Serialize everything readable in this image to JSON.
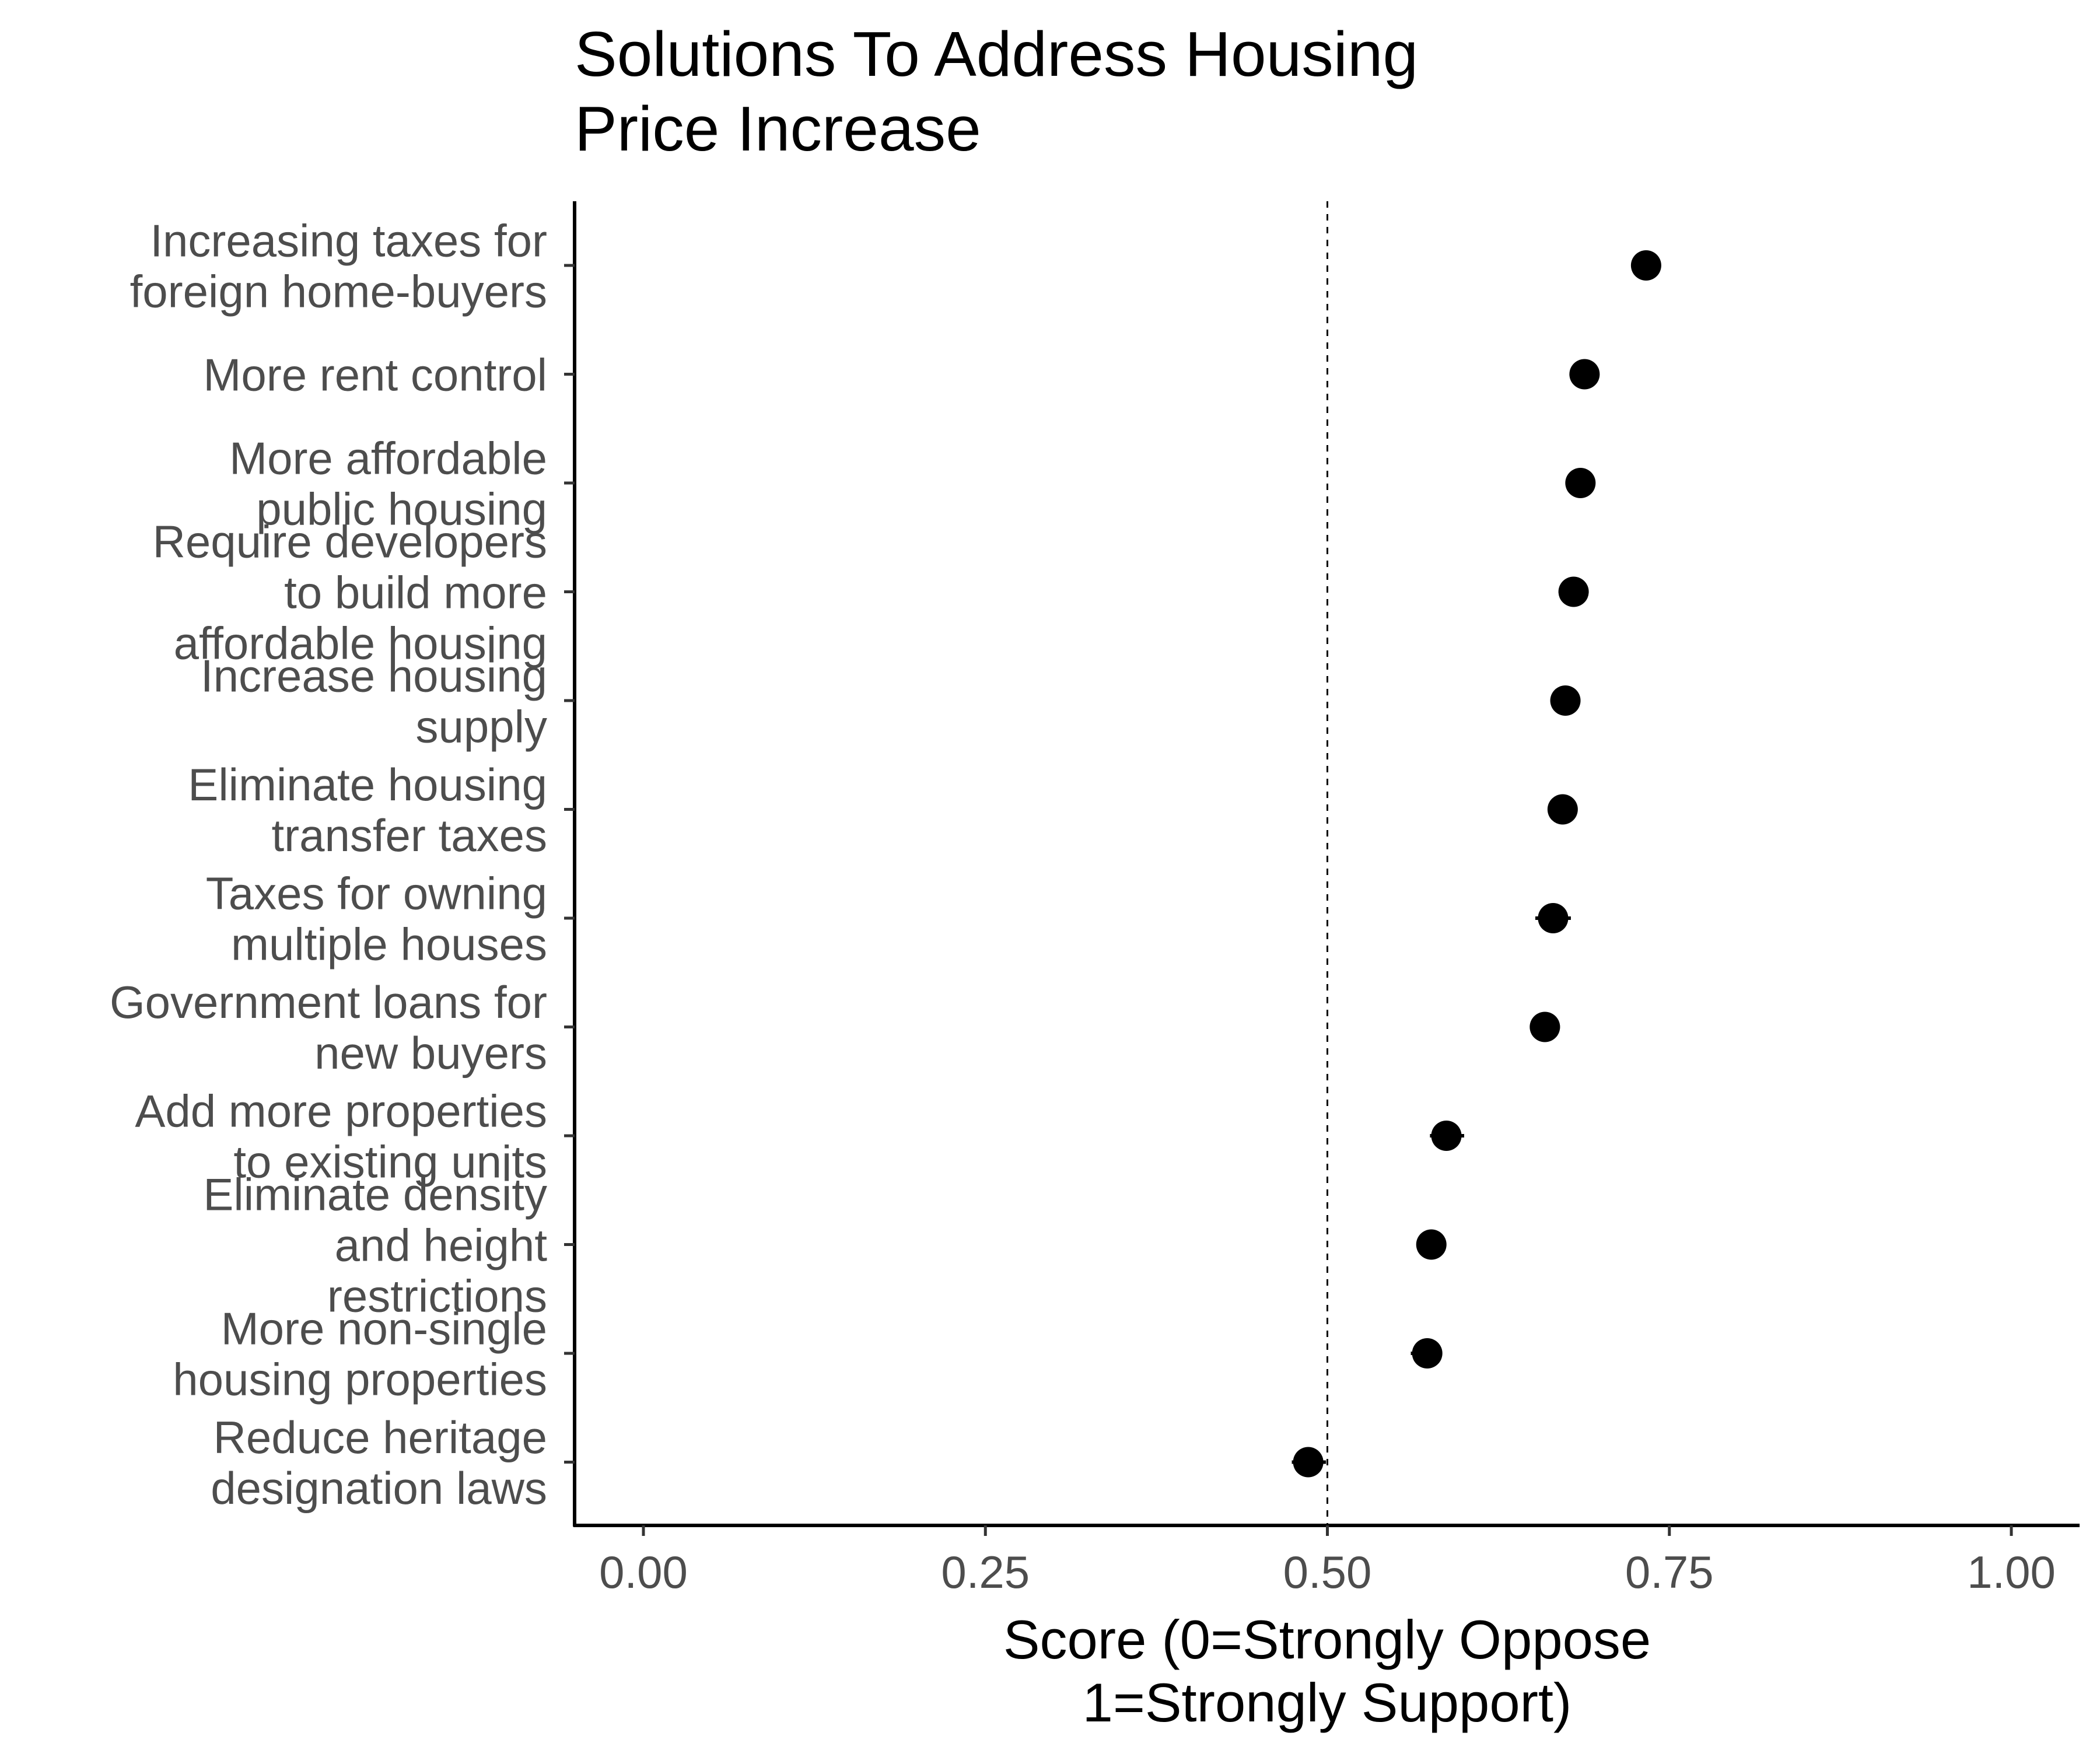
{
  "chart_data": {
    "type": "scatter",
    "title_lines": [
      "Solutions To Address Housing",
      "Price Increase"
    ],
    "xlabel_lines": [
      "Score (0=Strongly Oppose",
      "1=Strongly Support)"
    ],
    "ylabel": "",
    "xlim": [
      -0.025,
      1.05
    ],
    "x_ticks": [
      0,
      0.25,
      0.5,
      0.75,
      1.0
    ],
    "x_tick_labels": [
      "0.00",
      "0.25",
      "0.50",
      "0.75",
      "1.00"
    ],
    "reference_line": 0.5,
    "grid": false,
    "legend": "none",
    "point_color": "#000000",
    "points": [
      {
        "label_lines": [
          "Increasing taxes for",
          "foreign home-buyers"
        ],
        "value": 0.733,
        "ci": [
          0.726,
          0.741
        ]
      },
      {
        "label_lines": [
          "More rent control"
        ],
        "value": 0.688,
        "ci": [
          0.679,
          0.697
        ]
      },
      {
        "label_lines": [
          "More affordable",
          "public housing"
        ],
        "value": 0.685,
        "ci": [
          0.677,
          0.693
        ]
      },
      {
        "label_lines": [
          "Require developers",
          "to build more",
          "affordable housing"
        ],
        "value": 0.68,
        "ci": [
          0.672,
          0.688
        ]
      },
      {
        "label_lines": [
          "Increase housing",
          "supply"
        ],
        "value": 0.674,
        "ci": [
          0.666,
          0.682
        ]
      },
      {
        "label_lines": [
          "Eliminate housing",
          "transfer taxes"
        ],
        "value": 0.672,
        "ci": [
          0.664,
          0.681
        ]
      },
      {
        "label_lines": [
          "Taxes for owning",
          "multiple houses"
        ],
        "value": 0.665,
        "ci": [
          0.652,
          0.678
        ]
      },
      {
        "label_lines": [
          "Government loans for",
          "new buyers"
        ],
        "value": 0.659,
        "ci": [
          0.648,
          0.67
        ]
      },
      {
        "label_lines": [
          "Add more properties",
          "to existing units"
        ],
        "value": 0.587,
        "ci": [
          0.575,
          0.6
        ]
      },
      {
        "label_lines": [
          "Eliminate density",
          "and height",
          "restrictions"
        ],
        "value": 0.576,
        "ci": [
          0.566,
          0.587
        ]
      },
      {
        "label_lines": [
          "More non-single",
          "housing properties"
        ],
        "value": 0.573,
        "ci": [
          0.561,
          0.584
        ]
      },
      {
        "label_lines": [
          "Reduce heritage",
          "designation laws"
        ],
        "value": 0.486,
        "ci": [
          0.474,
          0.499
        ]
      }
    ]
  }
}
